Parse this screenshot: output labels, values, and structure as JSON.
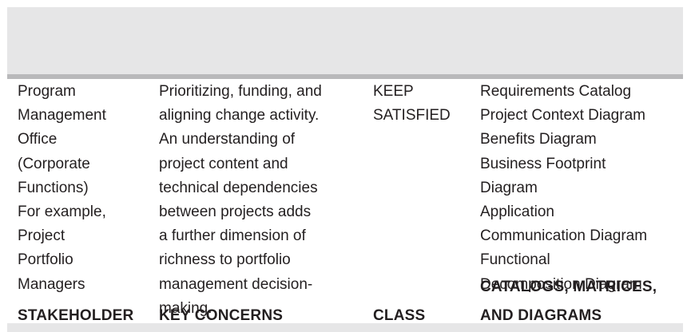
{
  "headers": {
    "stakeholder": "STAKEHOLDER",
    "key_concerns": "KEY CONCERNS",
    "class": "CLASS",
    "catalogs": [
      "CATALOGS, MATRICES,",
      "AND DIAGRAMS"
    ]
  },
  "row": {
    "stakeholder": [
      "Program",
      "Management",
      "Office",
      "(Corporate",
      "Functions)",
      "For example,",
      "Project",
      "Portfolio",
      "Managers"
    ],
    "key_concerns": [
      "Prioritizing, funding, and",
      "aligning change activity.",
      "An understanding of",
      "project content and",
      "technical dependencies",
      "between projects adds",
      "a further dimension of",
      "richness to portfolio",
      "management decision-",
      "making."
    ],
    "class": [
      "KEEP",
      "SATISFIED"
    ],
    "catalogs": [
      "Requirements Catalog",
      "Project Context Diagram",
      "Benefits Diagram",
      "Business Footprint",
      "Diagram",
      "Application",
      "Communication Diagram",
      "Functional",
      "Decomposition Diagram"
    ]
  },
  "colors": {
    "header_band": "#e6e6e7",
    "header_rule": "#b9b9bb",
    "text": "#231f20"
  }
}
